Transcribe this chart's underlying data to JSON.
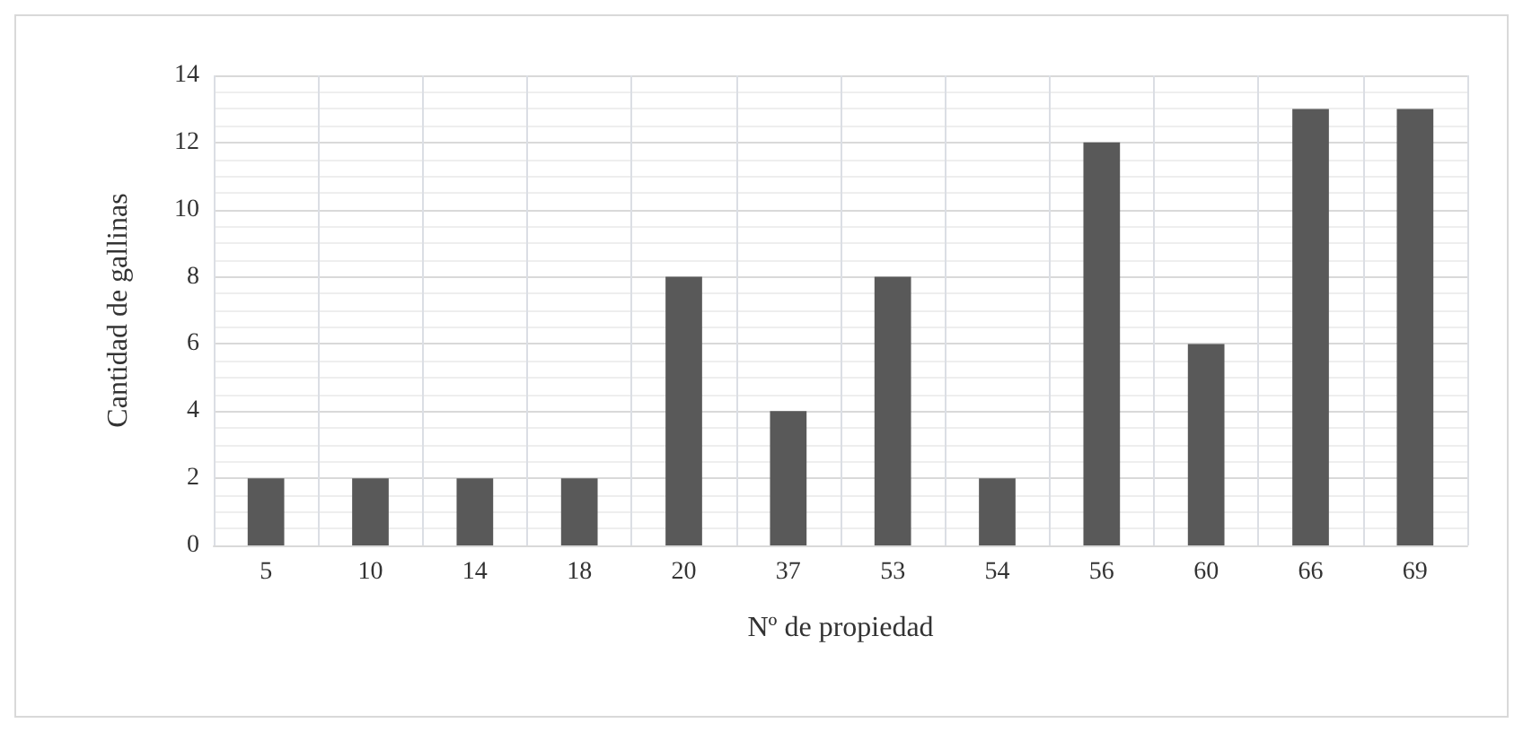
{
  "chart_data": {
    "type": "bar",
    "xlabel": "Nº de propiedad",
    "ylabel": "Cantidad de gallinas",
    "categories": [
      "5",
      "10",
      "14",
      "18",
      "20",
      "37",
      "53",
      "54",
      "56",
      "60",
      "66",
      "69"
    ],
    "values": [
      2,
      2,
      2,
      2,
      8,
      4,
      8,
      2,
      12,
      6,
      13,
      13
    ],
    "color": "#595959",
    "ylim": [
      0,
      14
    ],
    "yticks": [
      0,
      2,
      4,
      6,
      8,
      10,
      12,
      14
    ],
    "grid": true
  }
}
